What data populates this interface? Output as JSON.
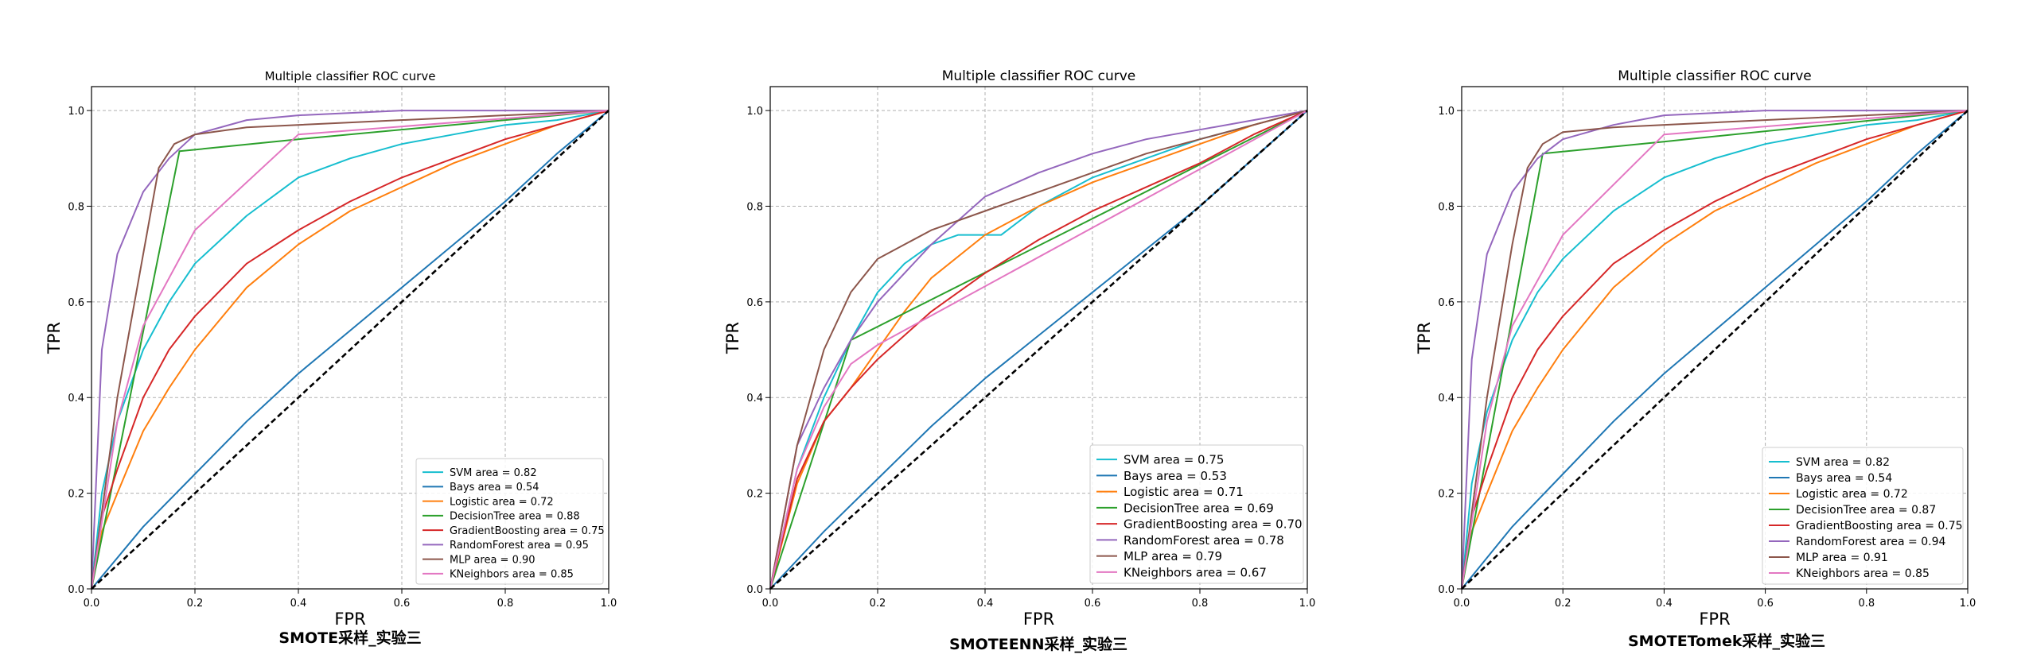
{
  "chart_data": [
    {
      "type": "line",
      "title": "Multiple classifier ROC curve",
      "xlabel": "FPR",
      "ylabel": "TPR",
      "caption": "SMOTE采样_实验三",
      "xlim": [
        0,
        1
      ],
      "ylim": [
        0,
        1.05
      ],
      "xticks": [
        "0.0",
        "0.2",
        "0.4",
        "0.6",
        "0.8",
        "1.0"
      ],
      "yticks": [
        "0.0",
        "0.2",
        "0.4",
        "0.6",
        "0.8",
        "1.0"
      ],
      "grid": true,
      "legend_position": "lower-right",
      "series": [
        {
          "name": "SVM area = 0.82",
          "color": "#17becf",
          "x": [
            0,
            0.02,
            0.05,
            0.1,
            0.15,
            0.2,
            0.3,
            0.4,
            0.5,
            0.6,
            0.7,
            0.8,
            0.9,
            1
          ],
          "y": [
            0,
            0.2,
            0.35,
            0.5,
            0.6,
            0.68,
            0.78,
            0.86,
            0.9,
            0.93,
            0.95,
            0.97,
            0.98,
            1
          ]
        },
        {
          "name": "Bays area = 0.54",
          "color": "#1f77b4",
          "x": [
            0,
            0.1,
            0.2,
            0.3,
            0.4,
            0.5,
            0.6,
            0.7,
            0.8,
            0.9,
            1
          ],
          "y": [
            0,
            0.13,
            0.24,
            0.35,
            0.45,
            0.54,
            0.63,
            0.72,
            0.81,
            0.91,
            1
          ]
        },
        {
          "name": "Logistic area = 0.72",
          "color": "#ff7f0e",
          "x": [
            0,
            0.02,
            0.05,
            0.1,
            0.15,
            0.2,
            0.3,
            0.4,
            0.5,
            0.6,
            0.7,
            0.8,
            0.9,
            1
          ],
          "y": [
            0,
            0.12,
            0.2,
            0.33,
            0.42,
            0.5,
            0.63,
            0.72,
            0.79,
            0.84,
            0.89,
            0.93,
            0.97,
            1
          ]
        },
        {
          "name": "DecisionTree area = 0.88",
          "color": "#2ca02c",
          "x": [
            0,
            0.17,
            0.4,
            1
          ],
          "y": [
            0,
            0.915,
            0.94,
            1
          ]
        },
        {
          "name": "GradientBoosting area = 0.75",
          "color": "#d62728",
          "x": [
            0,
            0.02,
            0.05,
            0.1,
            0.15,
            0.2,
            0.3,
            0.4,
            0.5,
            0.6,
            0.7,
            0.8,
            0.9,
            1
          ],
          "y": [
            0,
            0.15,
            0.25,
            0.4,
            0.5,
            0.57,
            0.68,
            0.75,
            0.81,
            0.86,
            0.9,
            0.94,
            0.97,
            1
          ]
        },
        {
          "name": "RandomForest area = 0.95",
          "color": "#9467bd",
          "x": [
            0,
            0.02,
            0.05,
            0.1,
            0.15,
            0.2,
            0.3,
            0.4,
            0.6,
            0.8,
            1
          ],
          "y": [
            0,
            0.5,
            0.7,
            0.83,
            0.9,
            0.95,
            0.98,
            0.99,
            1,
            1,
            1
          ]
        },
        {
          "name": " MLP area = 0.90",
          "color": "#8c564b",
          "x": [
            0,
            0.05,
            0.1,
            0.13,
            0.16,
            0.2,
            0.3,
            0.5,
            0.7,
            0.9,
            1
          ],
          "y": [
            0,
            0.4,
            0.7,
            0.88,
            0.93,
            0.95,
            0.965,
            0.975,
            0.985,
            0.995,
            1
          ]
        },
        {
          "name": "KNeighbors area = 0.85",
          "color": "#e377c2",
          "x": [
            0,
            0.05,
            0.1,
            0.2,
            0.4,
            1
          ],
          "y": [
            0,
            0.35,
            0.55,
            0.75,
            0.95,
            1
          ]
        },
        {
          "name": "",
          "color": "#000000",
          "dashed": true,
          "x": [
            0,
            1
          ],
          "y": [
            0,
            1
          ]
        }
      ]
    },
    {
      "type": "line",
      "title": "Multiple classifier ROC curve",
      "xlabel": "FPR",
      "ylabel": "TPR",
      "caption": "SMOTEENN采样_实验三",
      "xlim": [
        0,
        1
      ],
      "ylim": [
        0,
        1.05
      ],
      "xticks": [
        "0.0",
        "0.2",
        "0.4",
        "0.6",
        "0.8",
        "1.0"
      ],
      "yticks": [
        "0.0",
        "0.2",
        "0.4",
        "0.6",
        "0.8",
        "1.0"
      ],
      "grid": true,
      "legend_position": "lower-right",
      "series": [
        {
          "name": "SVM area = 0.75",
          "color": "#17becf",
          "x": [
            0,
            0.05,
            0.1,
            0.15,
            0.2,
            0.25,
            0.3,
            0.35,
            0.4,
            0.43,
            0.5,
            0.6,
            0.7,
            0.8,
            0.9,
            1
          ],
          "y": [
            0,
            0.25,
            0.4,
            0.52,
            0.62,
            0.68,
            0.72,
            0.74,
            0.74,
            0.74,
            0.8,
            0.86,
            0.9,
            0.94,
            0.97,
            1
          ]
        },
        {
          "name": "Bays area = 0.53",
          "color": "#1f77b4",
          "x": [
            0,
            0.1,
            0.2,
            0.3,
            0.4,
            0.5,
            0.6,
            0.7,
            0.8,
            0.9,
            1
          ],
          "y": [
            0,
            0.12,
            0.23,
            0.34,
            0.44,
            0.53,
            0.62,
            0.71,
            0.8,
            0.9,
            1
          ]
        },
        {
          "name": "Logistic area = 0.71",
          "color": "#ff7f0e",
          "x": [
            0,
            0.05,
            0.1,
            0.15,
            0.2,
            0.25,
            0.3,
            0.4,
            0.5,
            0.6,
            0.7,
            0.8,
            0.9,
            1
          ],
          "y": [
            0,
            0.22,
            0.35,
            0.42,
            0.5,
            0.58,
            0.65,
            0.74,
            0.8,
            0.85,
            0.89,
            0.93,
            0.97,
            1
          ]
        },
        {
          "name": "DecisionTree area = 0.69",
          "color": "#2ca02c",
          "x": [
            0,
            0.15,
            1
          ],
          "y": [
            0,
            0.52,
            1
          ]
        },
        {
          "name": "GradientBoosting area = 0.70",
          "color": "#d62728",
          "x": [
            0,
            0.05,
            0.1,
            0.15,
            0.2,
            0.3,
            0.4,
            0.5,
            0.6,
            0.7,
            0.8,
            0.9,
            1
          ],
          "y": [
            0,
            0.23,
            0.35,
            0.42,
            0.48,
            0.58,
            0.66,
            0.73,
            0.79,
            0.84,
            0.89,
            0.95,
            1
          ]
        },
        {
          "name": "RandomForest area = 0.78",
          "color": "#9467bd",
          "x": [
            0,
            0.05,
            0.1,
            0.15,
            0.2,
            0.3,
            0.4,
            0.5,
            0.6,
            0.7,
            0.8,
            0.9,
            1
          ],
          "y": [
            0,
            0.3,
            0.42,
            0.52,
            0.6,
            0.72,
            0.82,
            0.87,
            0.91,
            0.94,
            0.96,
            0.98,
            1
          ]
        },
        {
          "name": " MLP area = 0.79",
          "color": "#8c564b",
          "x": [
            0,
            0.05,
            0.1,
            0.15,
            0.2,
            0.3,
            0.4,
            0.5,
            0.6,
            0.7,
            0.8,
            0.9,
            1
          ],
          "y": [
            0,
            0.3,
            0.5,
            0.62,
            0.69,
            0.75,
            0.79,
            0.83,
            0.87,
            0.91,
            0.94,
            0.97,
            1
          ]
        },
        {
          "name": "KNeighbors area = 0.67",
          "color": "#e377c2",
          "x": [
            0,
            0.05,
            0.1,
            0.15,
            0.2,
            1
          ],
          "y": [
            0,
            0.25,
            0.38,
            0.47,
            0.51,
            1
          ]
        },
        {
          "name": "",
          "color": "#000000",
          "dashed": true,
          "x": [
            0,
            1
          ],
          "y": [
            0,
            1
          ]
        }
      ]
    },
    {
      "type": "line",
      "title": "Multiple classifier ROC curve",
      "xlabel": "FPR",
      "ylabel": "TPR",
      "caption": "SMOTETomek采样_实验三",
      "xlim": [
        0,
        1
      ],
      "ylim": [
        0,
        1.05
      ],
      "xticks": [
        "0.0",
        "0.2",
        "0.4",
        "0.6",
        "0.8",
        "1.0"
      ],
      "yticks": [
        "0.0",
        "0.2",
        "0.4",
        "0.6",
        "0.8",
        "1.0"
      ],
      "grid": true,
      "legend_position": "lower-right",
      "series": [
        {
          "name": "SVM area = 0.82",
          "color": "#17becf",
          "x": [
            0,
            0.02,
            0.05,
            0.1,
            0.15,
            0.2,
            0.3,
            0.4,
            0.5,
            0.6,
            0.7,
            0.8,
            0.9,
            1
          ],
          "y": [
            0,
            0.22,
            0.37,
            0.52,
            0.62,
            0.69,
            0.79,
            0.86,
            0.9,
            0.93,
            0.95,
            0.97,
            0.98,
            1
          ]
        },
        {
          "name": "Bays area = 0.54",
          "color": "#1f77b4",
          "x": [
            0,
            0.1,
            0.2,
            0.3,
            0.4,
            0.5,
            0.6,
            0.7,
            0.8,
            0.9,
            1
          ],
          "y": [
            0,
            0.13,
            0.24,
            0.35,
            0.45,
            0.54,
            0.63,
            0.72,
            0.81,
            0.91,
            1
          ]
        },
        {
          "name": "Logistic area = 0.72",
          "color": "#ff7f0e",
          "x": [
            0,
            0.02,
            0.05,
            0.1,
            0.15,
            0.2,
            0.3,
            0.4,
            0.5,
            0.6,
            0.7,
            0.8,
            0.9,
            1
          ],
          "y": [
            0,
            0.12,
            0.2,
            0.33,
            0.42,
            0.5,
            0.63,
            0.72,
            0.79,
            0.84,
            0.89,
            0.93,
            0.97,
            1
          ]
        },
        {
          "name": "DecisionTree area = 0.87",
          "color": "#2ca02c",
          "x": [
            0,
            0.16,
            0.4,
            1
          ],
          "y": [
            0,
            0.91,
            0.935,
            1
          ]
        },
        {
          "name": "GradientBoosting area = 0.75",
          "color": "#d62728",
          "x": [
            0,
            0.02,
            0.05,
            0.1,
            0.15,
            0.2,
            0.3,
            0.4,
            0.5,
            0.6,
            0.7,
            0.8,
            0.9,
            1
          ],
          "y": [
            0,
            0.15,
            0.25,
            0.4,
            0.5,
            0.57,
            0.68,
            0.75,
            0.81,
            0.86,
            0.9,
            0.94,
            0.97,
            1
          ]
        },
        {
          "name": "RandomForest area = 0.94",
          "color": "#9467bd",
          "x": [
            0,
            0.02,
            0.05,
            0.1,
            0.15,
            0.2,
            0.3,
            0.4,
            0.6,
            0.8,
            1
          ],
          "y": [
            0,
            0.48,
            0.7,
            0.83,
            0.9,
            0.94,
            0.97,
            0.99,
            1,
            1,
            1
          ]
        },
        {
          "name": " MLP area = 0.91",
          "color": "#8c564b",
          "x": [
            0,
            0.05,
            0.1,
            0.13,
            0.16,
            0.2,
            0.3,
            0.5,
            0.7,
            0.9,
            1
          ],
          "y": [
            0,
            0.4,
            0.72,
            0.88,
            0.93,
            0.955,
            0.965,
            0.975,
            0.985,
            0.995,
            1
          ]
        },
        {
          "name": "KNeighbors area = 0.85",
          "color": "#e377c2",
          "x": [
            0,
            0.05,
            0.1,
            0.2,
            0.4,
            1
          ],
          "y": [
            0,
            0.35,
            0.55,
            0.74,
            0.95,
            1
          ]
        },
        {
          "name": "",
          "color": "#000000",
          "dashed": true,
          "x": [
            0,
            1
          ],
          "y": [
            0,
            1
          ]
        }
      ]
    }
  ]
}
